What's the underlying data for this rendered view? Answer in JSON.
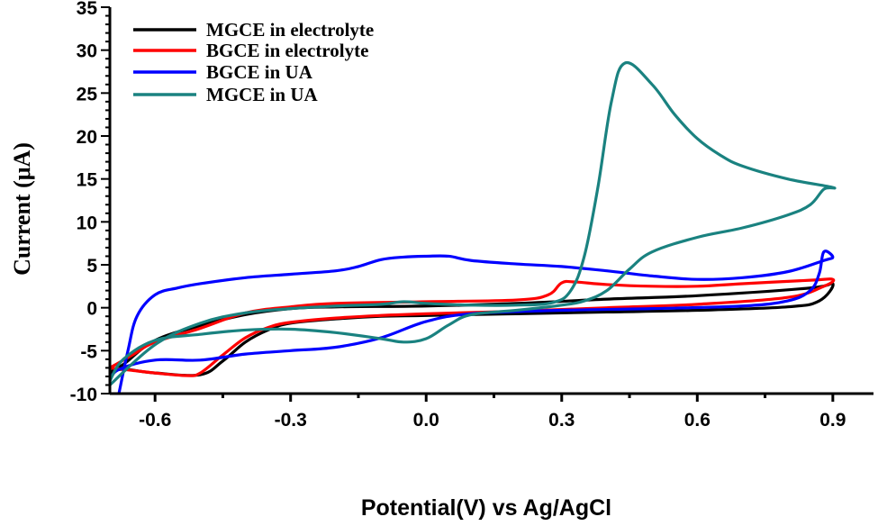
{
  "chart_data": {
    "type": "line",
    "title": "",
    "xlabel": "Potential(V) vs Ag/AgCl",
    "ylabel": "Current (μA)",
    "xlim": [
      -0.7,
      0.99
    ],
    "ylim": [
      -10,
      35
    ],
    "x_ticks": [
      -0.6,
      -0.3,
      0.0,
      0.3,
      0.6,
      0.9
    ],
    "x_tick_labels": [
      "-0.6",
      "-0.3",
      "0.0",
      "0.3",
      "0.6",
      "0.9"
    ],
    "y_ticks": [
      -10,
      -5,
      0,
      5,
      10,
      15,
      20,
      25,
      30,
      35
    ],
    "y_tick_labels": [
      "-10",
      "-5",
      "0",
      "5",
      "10",
      "15",
      "20",
      "25",
      "30",
      "35"
    ],
    "grid": false,
    "legend_position": "top-left",
    "series": [
      {
        "name": "MGCE in electrolyte",
        "color": "#000000",
        "points": [
          [
            -0.7,
            -8.5
          ],
          [
            -0.68,
            -7.2
          ],
          [
            -0.6,
            -7.6
          ],
          [
            -0.5,
            -7.8
          ],
          [
            -0.45,
            -6.2
          ],
          [
            -0.4,
            -4
          ],
          [
            -0.35,
            -2.6
          ],
          [
            -0.3,
            -1.8
          ],
          [
            -0.2,
            -1.3
          ],
          [
            -0.1,
            -1
          ],
          [
            0,
            -0.9
          ],
          [
            0.2,
            -0.7
          ],
          [
            0.4,
            -0.5
          ],
          [
            0.6,
            -0.3
          ],
          [
            0.8,
            0.1
          ],
          [
            0.87,
            0.8
          ],
          [
            0.9,
            2.8
          ],
          [
            0.85,
            2.3
          ],
          [
            0.6,
            1.4
          ],
          [
            0.4,
            1
          ],
          [
            0.2,
            0.5
          ],
          [
            0,
            0.2
          ],
          [
            -0.2,
            0.1
          ],
          [
            -0.3,
            -0.1
          ],
          [
            -0.4,
            -0.8
          ],
          [
            -0.5,
            -2.1
          ],
          [
            -0.6,
            -3.8
          ],
          [
            -0.67,
            -6.6
          ],
          [
            -0.7,
            -7.5
          ]
        ]
      },
      {
        "name": "BGCE in electrolyte",
        "color": "#ff0000",
        "points": [
          [
            -0.7,
            -7
          ],
          [
            -0.65,
            -7.3
          ],
          [
            -0.6,
            -7.6
          ],
          [
            -0.53,
            -7.9
          ],
          [
            -0.5,
            -7.6
          ],
          [
            -0.45,
            -5.5
          ],
          [
            -0.4,
            -3.5
          ],
          [
            -0.35,
            -2.3
          ],
          [
            -0.3,
            -1.7
          ],
          [
            -0.2,
            -1.2
          ],
          [
            -0.1,
            -0.9
          ],
          [
            0,
            -0.7
          ],
          [
            0.2,
            -0.4
          ],
          [
            0.4,
            0
          ],
          [
            0.6,
            0.4
          ],
          [
            0.8,
            1.2
          ],
          [
            0.88,
            2.5
          ],
          [
            0.9,
            3.3
          ],
          [
            0.85,
            3.2
          ],
          [
            0.7,
            2.8
          ],
          [
            0.6,
            2.5
          ],
          [
            0.5,
            2.5
          ],
          [
            0.4,
            2.7
          ],
          [
            0.33,
            3
          ],
          [
            0.3,
            2.9
          ],
          [
            0.27,
            1.5
          ],
          [
            0.2,
            0.9
          ],
          [
            0,
            0.7
          ],
          [
            -0.2,
            0.5
          ],
          [
            -0.3,
            0.1
          ],
          [
            -0.4,
            -0.6
          ],
          [
            -0.5,
            -2.4
          ],
          [
            -0.6,
            -4
          ],
          [
            -0.65,
            -5.5
          ],
          [
            -0.7,
            -7
          ]
        ]
      },
      {
        "name": "BGCE in UA",
        "color": "#0000ff",
        "points": [
          [
            -0.68,
            -10
          ],
          [
            -0.66,
            -5
          ],
          [
            -0.64,
            -1
          ],
          [
            -0.6,
            1.5
          ],
          [
            -0.55,
            2.3
          ],
          [
            -0.5,
            2.8
          ],
          [
            -0.4,
            3.5
          ],
          [
            -0.3,
            3.9
          ],
          [
            -0.2,
            4.3
          ],
          [
            -0.15,
            4.8
          ],
          [
            -0.1,
            5.6
          ],
          [
            -0.05,
            5.9
          ],
          [
            0,
            6
          ],
          [
            0.05,
            6
          ],
          [
            0.1,
            5.5
          ],
          [
            0.2,
            5.1
          ],
          [
            0.3,
            4.8
          ],
          [
            0.4,
            4.3
          ],
          [
            0.5,
            3.7
          ],
          [
            0.6,
            3.3
          ],
          [
            0.7,
            3.5
          ],
          [
            0.8,
            4.2
          ],
          [
            0.88,
            5.5
          ],
          [
            0.9,
            5.9
          ],
          [
            0.88,
            6.5
          ],
          [
            0.87,
            4
          ],
          [
            0.85,
            2
          ],
          [
            0.8,
            0.8
          ],
          [
            0.7,
            0.2
          ],
          [
            0.5,
            -0.1
          ],
          [
            0.3,
            -0.3
          ],
          [
            0.1,
            -0.7
          ],
          [
            0,
            -1.6
          ],
          [
            -0.1,
            -3.5
          ],
          [
            -0.2,
            -4.6
          ],
          [
            -0.3,
            -5
          ],
          [
            -0.4,
            -5.4
          ],
          [
            -0.5,
            -6.1
          ],
          [
            -0.6,
            -6.1
          ],
          [
            -0.68,
            -7.2
          ],
          [
            -0.7,
            -8.5
          ]
        ]
      },
      {
        "name": "MGCE in UA",
        "color": "#1a8280",
        "points": [
          [
            -0.7,
            -9
          ],
          [
            -0.6,
            -4.3
          ],
          [
            -0.5,
            -1.8
          ],
          [
            -0.4,
            -0.6
          ],
          [
            -0.3,
            -0.1
          ],
          [
            -0.2,
            0.2
          ],
          [
            -0.1,
            0.4
          ],
          [
            -0.05,
            0.7
          ],
          [
            0,
            0.5
          ],
          [
            0.1,
            0.3
          ],
          [
            0.2,
            0.3
          ],
          [
            0.28,
            0.6
          ],
          [
            0.32,
            2
          ],
          [
            0.35,
            6
          ],
          [
            0.38,
            14
          ],
          [
            0.41,
            24
          ],
          [
            0.44,
            28.5
          ],
          [
            0.5,
            26
          ],
          [
            0.55,
            22.5
          ],
          [
            0.6,
            19.7
          ],
          [
            0.65,
            17.8
          ],
          [
            0.7,
            16.5
          ],
          [
            0.8,
            15
          ],
          [
            0.9,
            14
          ],
          [
            0.88,
            13.8
          ],
          [
            0.85,
            12
          ],
          [
            0.8,
            10.8
          ],
          [
            0.7,
            9.3
          ],
          [
            0.6,
            8.2
          ],
          [
            0.5,
            6.5
          ],
          [
            0.45,
            4.5
          ],
          [
            0.4,
            2
          ],
          [
            0.35,
            0.8
          ],
          [
            0.3,
            0.3
          ],
          [
            0.2,
            -0.3
          ],
          [
            0.1,
            -0.8
          ],
          [
            0.05,
            -2
          ],
          [
            0,
            -3.6
          ],
          [
            -0.05,
            -4
          ],
          [
            -0.1,
            -3.6
          ],
          [
            -0.2,
            -2.9
          ],
          [
            -0.3,
            -2.5
          ],
          [
            -0.4,
            -2.6
          ],
          [
            -0.5,
            -3.1
          ],
          [
            -0.6,
            -3.8
          ],
          [
            -0.67,
            -6
          ],
          [
            -0.7,
            -8.5
          ]
        ]
      }
    ]
  }
}
